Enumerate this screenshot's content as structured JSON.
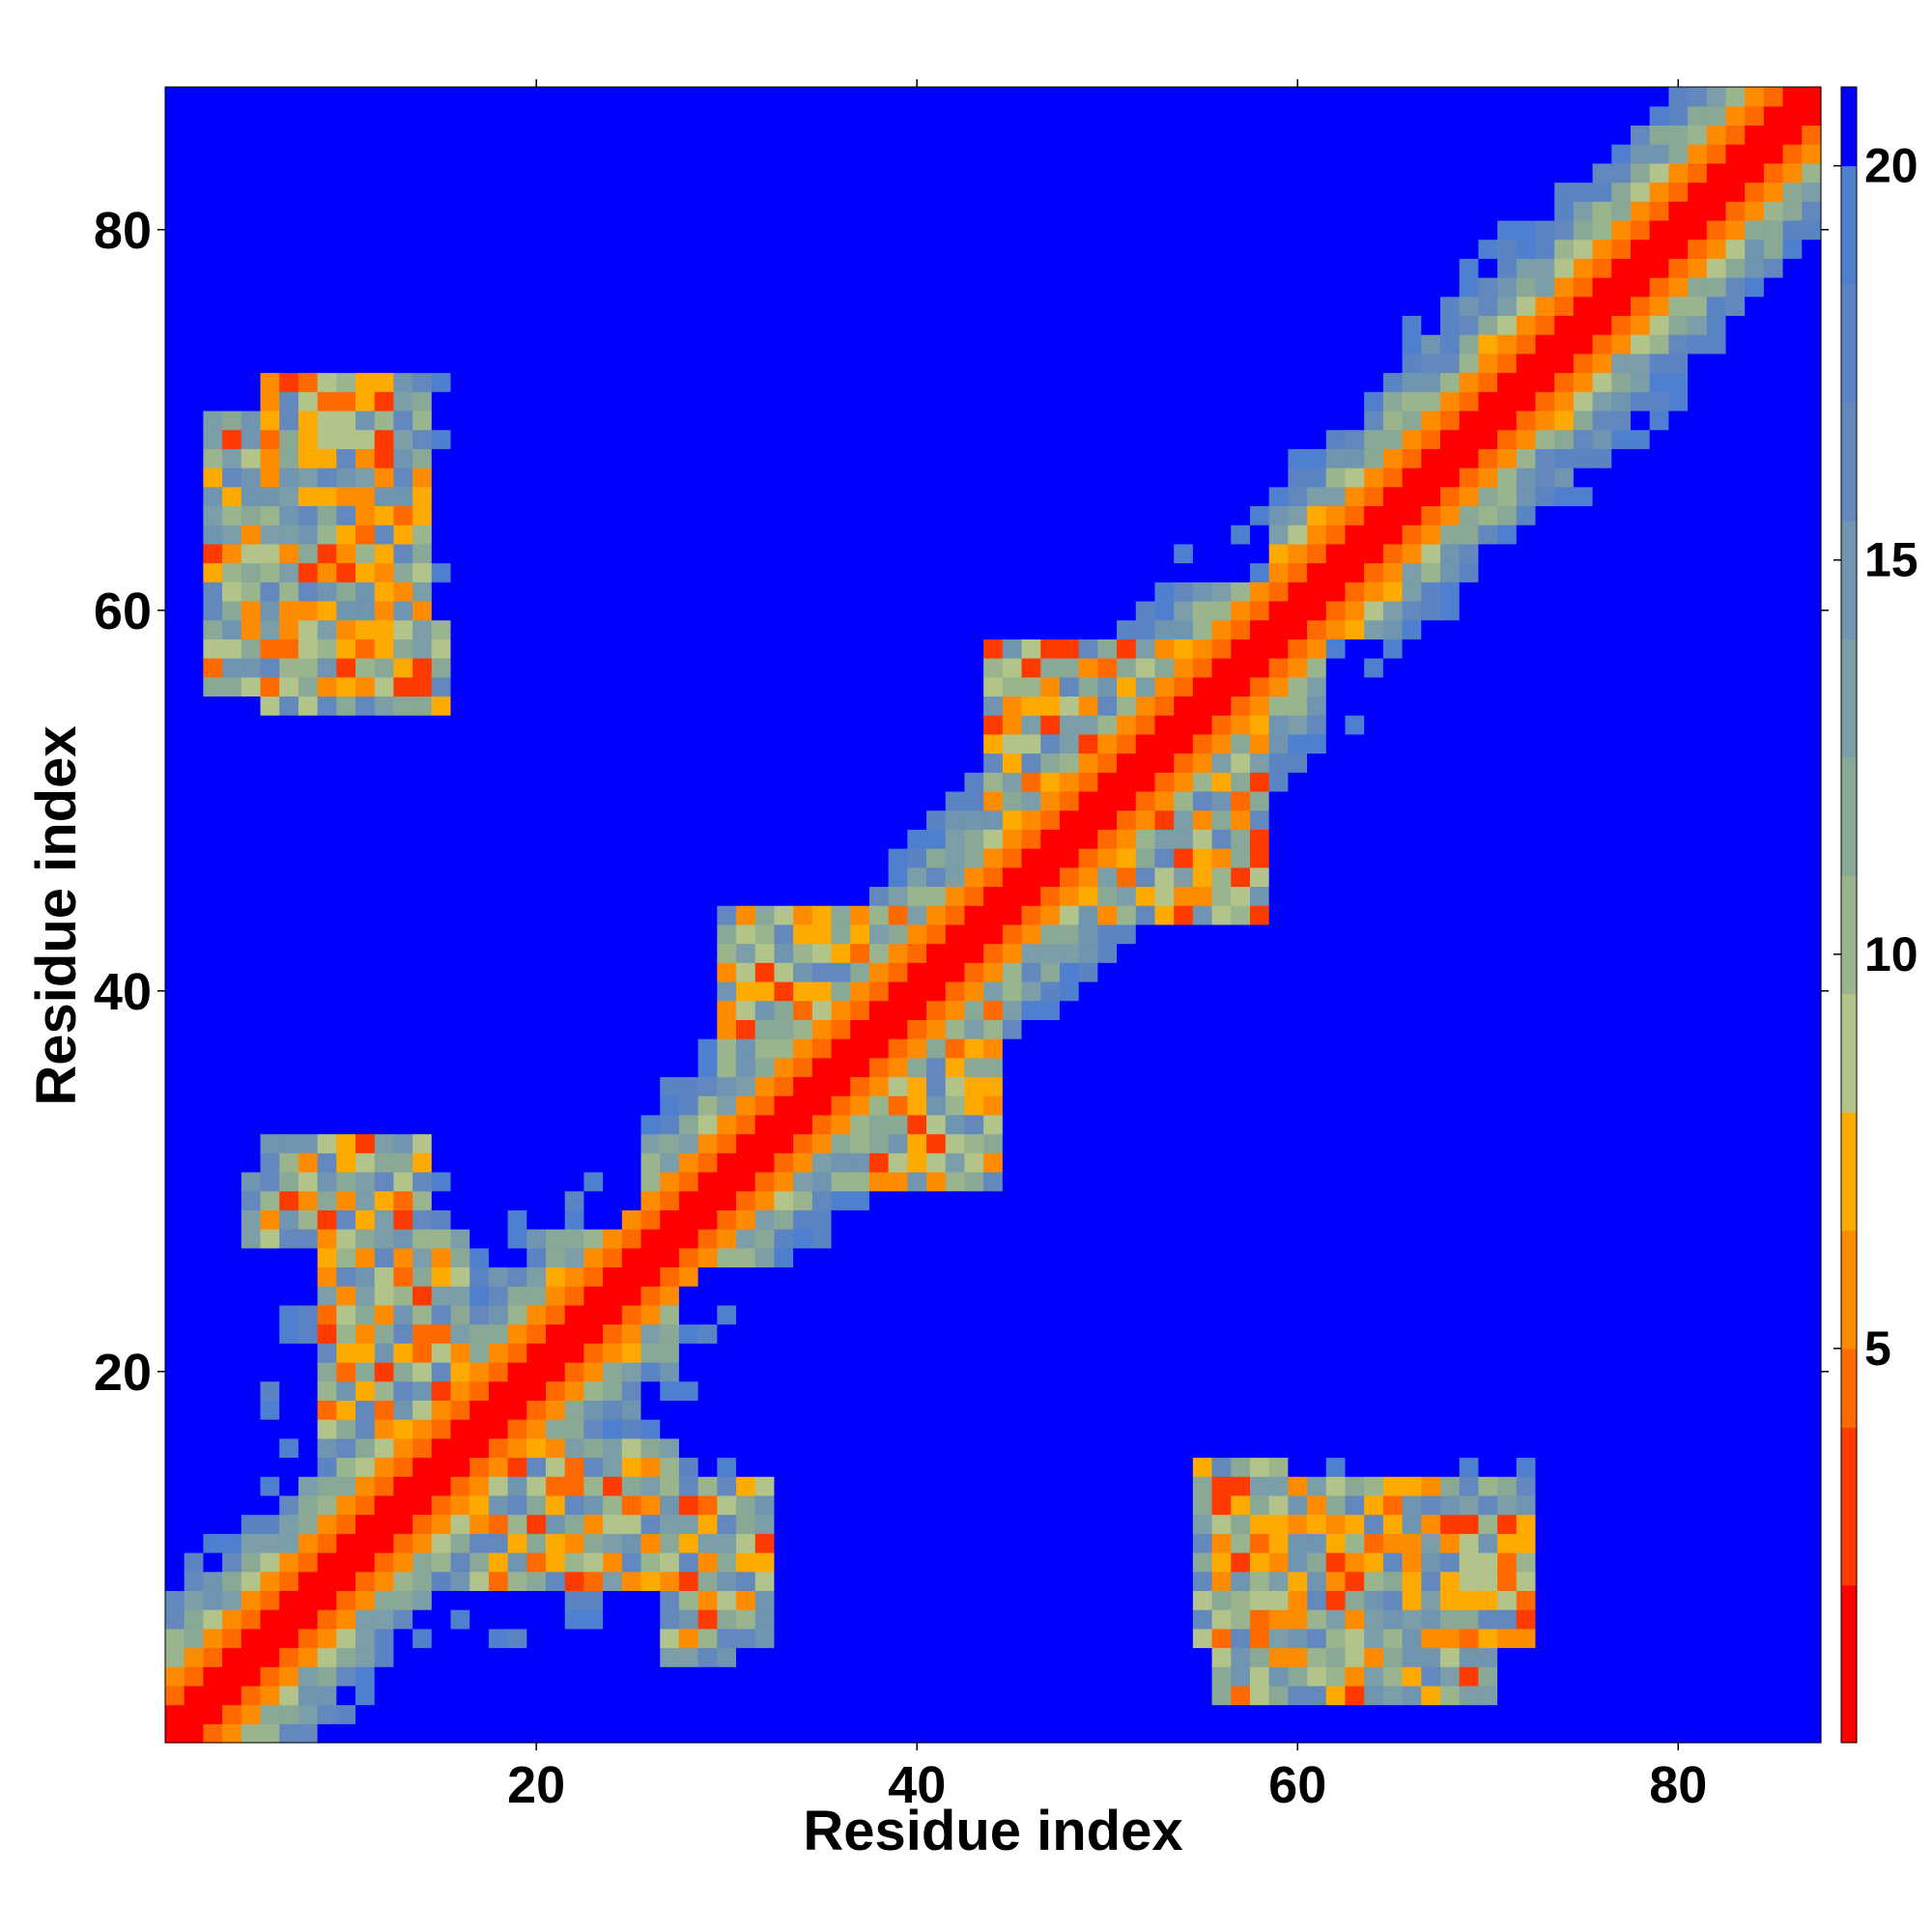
{
  "chart_data": {
    "type": "heatmap",
    "title": "",
    "xlabel": "Residue index",
    "ylabel": "Residue index",
    "n_residues": 87,
    "xlim": [
      0.5,
      87.5
    ],
    "ylim": [
      0.5,
      87.5
    ],
    "x_ticks": [
      20,
      40,
      60,
      80
    ],
    "y_ticks": [
      20,
      40,
      60,
      80
    ],
    "x_tick_labels": [
      "20",
      "40",
      "60",
      "80"
    ],
    "y_tick_labels": [
      "20",
      "40",
      "60",
      "80"
    ],
    "colorbar": {
      "range": [
        0,
        21
      ],
      "ticks": [
        5,
        10,
        15,
        20
      ],
      "tick_labels": [
        "5",
        "10",
        "15",
        "20"
      ],
      "position": "right"
    },
    "color_bins": [
      {
        "max": 2.0,
        "color": "#ff0000"
      },
      {
        "max": 4.0,
        "color": "#ff3a00"
      },
      {
        "max": 5.0,
        "color": "#ff6a00"
      },
      {
        "max": 6.5,
        "color": "#ff8c00"
      },
      {
        "max": 8.0,
        "color": "#ffaa00"
      },
      {
        "max": 9.5,
        "color": "#b2c48a"
      },
      {
        "max": 11.0,
        "color": "#9ab48e"
      },
      {
        "max": 12.5,
        "color": "#89a896"
      },
      {
        "max": 14.0,
        "color": "#7b9ea8"
      },
      {
        "max": 15.5,
        "color": "#6f95b0"
      },
      {
        "max": 17.0,
        "color": "#6288bd"
      },
      {
        "max": 18.5,
        "color": "#5a84c4"
      },
      {
        "max": 20.0,
        "color": "#4f7fcf"
      },
      {
        "max": 999,
        "color": "#0000ff"
      }
    ],
    "distance_map_description": "symmetric residue-residue distance matrix; values 0 to >20 (distance units); red diagonal band with orange side bands, blue regions for distant pairs",
    "features": {
      "diagonal_band": [
        {
          "from": 1,
          "to": 87
        }
      ],
      "antiparallel_contacts": [
        {
          "i_range": [
            3,
            15
          ],
          "j_range": [
            56,
            70
          ]
        },
        {
          "i_range": [
            5,
            14
          ],
          "j_range": [
            25,
            30
          ]
        },
        {
          "i_range": [
            17,
            32
          ],
          "j_range": [
            6,
            16
          ]
        },
        {
          "i_range": [
            55,
            72
          ],
          "j_range": [
            6,
            15
          ]
        },
        {
          "i_range": [
            30,
            40
          ],
          "j_range": [
            36,
            44
          ]
        },
        {
          "i_range": [
            46,
            58
          ],
          "j_range": [
            44,
            56
          ]
        }
      ],
      "far_regions": [
        {
          "x": [
            1,
            8
          ],
          "y": [
            15,
            26
          ]
        },
        {
          "x": [
            15,
            25
          ],
          "y": [
            28,
            48
          ]
        },
        {
          "x": [
            30,
            45
          ],
          "y": [
            15,
            22
          ]
        },
        {
          "x": [
            48,
            58
          ],
          "y": [
            28,
            38
          ]
        },
        {
          "x": [
            62,
            78
          ],
          "y": [
            15,
            24
          ]
        },
        {
          "x": [
            62,
            80
          ],
          "y": [
            46,
            58
          ]
        },
        {
          "x": [
            44,
            58
          ],
          "y": [
            62,
            78
          ]
        },
        {
          "x": [
            15,
            25
          ],
          "y": [
            60,
            80
          ]
        },
        {
          "x": [
            1,
            8
          ],
          "y": [
            76,
            87
          ]
        },
        {
          "x": [
            78,
            87
          ],
          "y": [
            1,
            10
          ]
        }
      ]
    }
  }
}
